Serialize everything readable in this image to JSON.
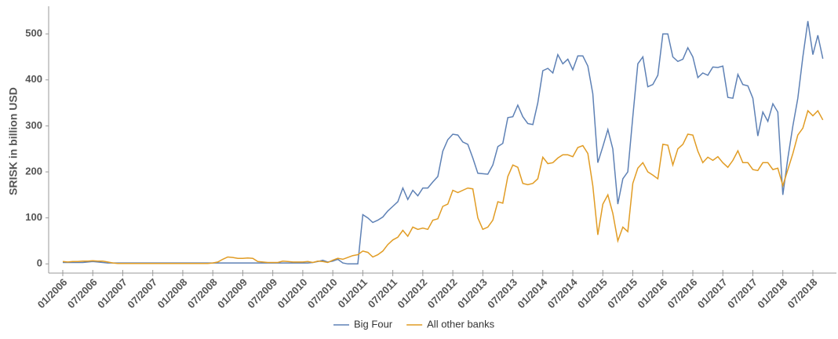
{
  "chart_data": {
    "type": "line",
    "y_label": "SRISK in billion USD",
    "x": [
      "01/2006",
      "02/2006",
      "03/2006",
      "04/2006",
      "05/2006",
      "06/2006",
      "07/2006",
      "08/2006",
      "09/2006",
      "10/2006",
      "11/2006",
      "12/2006",
      "01/2007",
      "02/2007",
      "03/2007",
      "04/2007",
      "05/2007",
      "06/2007",
      "07/2007",
      "08/2007",
      "09/2007",
      "10/2007",
      "11/2007",
      "12/2007",
      "01/2008",
      "02/2008",
      "03/2008",
      "04/2008",
      "05/2008",
      "06/2008",
      "07/2008",
      "08/2008",
      "09/2008",
      "10/2008",
      "11/2008",
      "12/2008",
      "01/2009",
      "02/2009",
      "03/2009",
      "04/2009",
      "05/2009",
      "06/2009",
      "07/2009",
      "08/2009",
      "09/2009",
      "10/2009",
      "11/2009",
      "12/2009",
      "01/2010",
      "02/2010",
      "03/2010",
      "04/2010",
      "05/2010",
      "06/2010",
      "07/2010",
      "08/2010",
      "09/2010",
      "10/2010",
      "11/2010",
      "12/2010",
      "01/2011",
      "02/2011",
      "03/2011",
      "04/2011",
      "05/2011",
      "06/2011",
      "07/2011",
      "08/2011",
      "09/2011",
      "10/2011",
      "11/2011",
      "12/2011",
      "01/2012",
      "02/2012",
      "03/2012",
      "04/2012",
      "05/2012",
      "06/2012",
      "07/2012",
      "08/2012",
      "09/2012",
      "10/2012",
      "11/2012",
      "12/2012",
      "01/2013",
      "02/2013",
      "03/2013",
      "04/2013",
      "05/2013",
      "06/2013",
      "07/2013",
      "08/2013",
      "09/2013",
      "10/2013",
      "11/2013",
      "12/2013",
      "01/2014",
      "02/2014",
      "03/2014",
      "04/2014",
      "05/2014",
      "06/2014",
      "07/2014",
      "08/2014",
      "09/2014",
      "10/2014",
      "11/2014",
      "12/2014",
      "01/2015",
      "02/2015",
      "03/2015",
      "04/2015",
      "05/2015",
      "06/2015",
      "07/2015",
      "08/2015",
      "09/2015",
      "10/2015",
      "11/2015",
      "12/2015",
      "01/2016",
      "02/2016",
      "03/2016",
      "04/2016",
      "05/2016",
      "06/2016",
      "07/2016",
      "08/2016",
      "09/2016",
      "10/2016",
      "11/2016",
      "12/2016",
      "01/2017",
      "02/2017",
      "03/2017",
      "04/2017",
      "05/2017",
      "06/2017",
      "07/2017",
      "08/2017",
      "09/2017",
      "10/2017",
      "11/2017",
      "12/2017",
      "01/2018",
      "02/2018",
      "03/2018",
      "04/2018",
      "05/2018",
      "06/2018",
      "07/2018",
      "08/2018",
      "09/2018"
    ],
    "series": [
      {
        "name": "Big Four",
        "color": "#5e81b5",
        "values": [
          3,
          3,
          3,
          3,
          3,
          4,
          5,
          4,
          3,
          2,
          2,
          2,
          2,
          2,
          2,
          2,
          2,
          2,
          2,
          2,
          2,
          2,
          2,
          2,
          2,
          2,
          2,
          2,
          2,
          2,
          2,
          2,
          2,
          2,
          2,
          2,
          2,
          2,
          2,
          2,
          2,
          2,
          2,
          2,
          2,
          2,
          2,
          2,
          2,
          2,
          3,
          5,
          8,
          4,
          6,
          10,
          2,
          0,
          0,
          0,
          107,
          100,
          90,
          95,
          102,
          115,
          125,
          135,
          165,
          140,
          160,
          148,
          165,
          165,
          178,
          190,
          245,
          270,
          282,
          280,
          265,
          260,
          230,
          197,
          196,
          195,
          215,
          255,
          262,
          318,
          320,
          345,
          320,
          305,
          303,
          350,
          420,
          425,
          415,
          455,
          435,
          445,
          422,
          452,
          452,
          430,
          370,
          220,
          255,
          292,
          250,
          130,
          185,
          200,
          320,
          435,
          450,
          385,
          390,
          410,
          500,
          500,
          450,
          440,
          445,
          470,
          450,
          405,
          415,
          410,
          428,
          427,
          430,
          362,
          360,
          412,
          390,
          387,
          360,
          278,
          330,
          310,
          348,
          330,
          150,
          230,
          300,
          360,
          450,
          528,
          455,
          497,
          446
        ]
      },
      {
        "name": "All other banks",
        "color": "#e19c24",
        "values": [
          5,
          4,
          5,
          5,
          6,
          6,
          7,
          6,
          6,
          4,
          2,
          1,
          1,
          1,
          1,
          1,
          1,
          1,
          1,
          1,
          1,
          1,
          1,
          1,
          1,
          1,
          1,
          1,
          1,
          1,
          2,
          4,
          10,
          15,
          14,
          12,
          12,
          13,
          12,
          5,
          4,
          3,
          3,
          3,
          6,
          5,
          4,
          4,
          4,
          5,
          3,
          6,
          5,
          3,
          8,
          12,
          10,
          14,
          18,
          20,
          28,
          25,
          15,
          20,
          28,
          42,
          52,
          58,
          73,
          60,
          80,
          75,
          78,
          75,
          95,
          98,
          125,
          130,
          160,
          155,
          160,
          165,
          163,
          100,
          75,
          80,
          95,
          135,
          132,
          190,
          215,
          210,
          175,
          172,
          175,
          185,
          232,
          218,
          220,
          230,
          237,
          237,
          233,
          253,
          257,
          240,
          170,
          63,
          130,
          150,
          110,
          50,
          80,
          70,
          175,
          208,
          220,
          200,
          193,
          185,
          260,
          258,
          215,
          250,
          260,
          282,
          280,
          245,
          220,
          232,
          225,
          233,
          220,
          210,
          225,
          246,
          220,
          220,
          205,
          203,
          220,
          220,
          205,
          208,
          170,
          205,
          240,
          280,
          295,
          333,
          322,
          333,
          313
        ]
      }
    ],
    "ylim": [
      -20,
      560
    ],
    "yticks": [
      0,
      100,
      200,
      300,
      400,
      500
    ],
    "grid": false,
    "legend": "bottom"
  }
}
